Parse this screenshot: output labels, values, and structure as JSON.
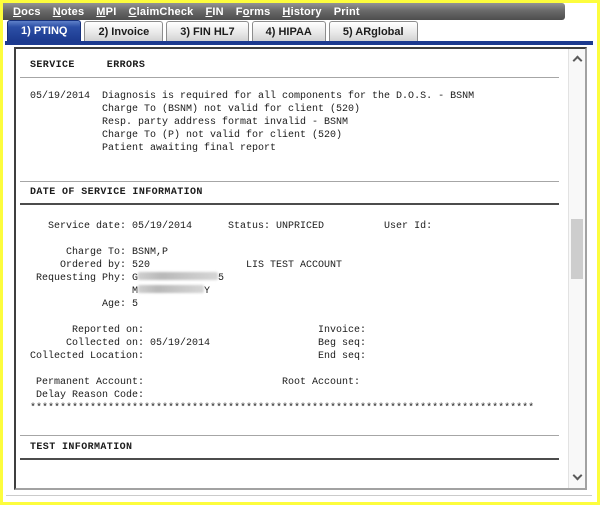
{
  "colors": {
    "accent_blue": "#1c3a8f",
    "window_border_yellow": "#fdfd3d"
  },
  "menubar": {
    "items": [
      {
        "name": "docs",
        "pre": "",
        "key": "D",
        "post": "ocs"
      },
      {
        "name": "notes",
        "pre": "",
        "key": "N",
        "post": "otes"
      },
      {
        "name": "mpi",
        "pre": "",
        "key": "M",
        "post": "PI"
      },
      {
        "name": "claimcheck",
        "pre": "",
        "key": "C",
        "post": "laimCheck"
      },
      {
        "name": "fin",
        "pre": "",
        "key": "F",
        "post": "IN"
      },
      {
        "name": "forms",
        "pre": "F",
        "key": "o",
        "post": "rms"
      },
      {
        "name": "history",
        "pre": "",
        "key": "H",
        "post": "istory"
      },
      {
        "name": "print",
        "pre": "",
        "key": "",
        "post": "Print"
      }
    ]
  },
  "tabs": [
    {
      "label": "1) PTINQ",
      "active": true
    },
    {
      "label": "2) Invoice",
      "active": false
    },
    {
      "label": "3) FIN HL7",
      "active": false
    },
    {
      "label": "4) HIPAA",
      "active": false
    },
    {
      "label": "5) ARglobal",
      "active": false
    }
  ],
  "report": {
    "service_header": "SERVICE     ERRORS",
    "service_error_lines": [
      "05/19/2014  Diagnosis is required for all components for the D.O.S. - BSNM",
      "            Charge To (BSNM) not valid for client (520)",
      "            Resp. party address format invalid - BSNM",
      "            Charge To (P) not valid for client (520)",
      "            Patient awaiting final report"
    ],
    "dos_header": "DATE OF SERVICE INFORMATION",
    "dos_lines_top": [
      "",
      "   Service date: 05/19/2014      Status: UNPRICED          User Id:",
      "",
      "      Charge To: BSNM,P",
      "     Ordered by: 520                LIS TEST ACCOUNT"
    ],
    "requesting_phy": {
      "label": " Requesting Phy: G",
      "tail": "5"
    },
    "requesting_phy2": {
      "label": "                 M",
      "tail": "Y"
    },
    "dos_lines_bottom": [
      "            Age: 5",
      "",
      "       Reported on:                             Invoice:",
      "      Collected on: 05/19/2014                  Beg seq:",
      "Collected Location:                             End seq:",
      "",
      " Permanent Account:                       Root Account:",
      " Delay Reason Code:",
      "************************************************************************************"
    ],
    "test_header": "TEST INFORMATION"
  }
}
